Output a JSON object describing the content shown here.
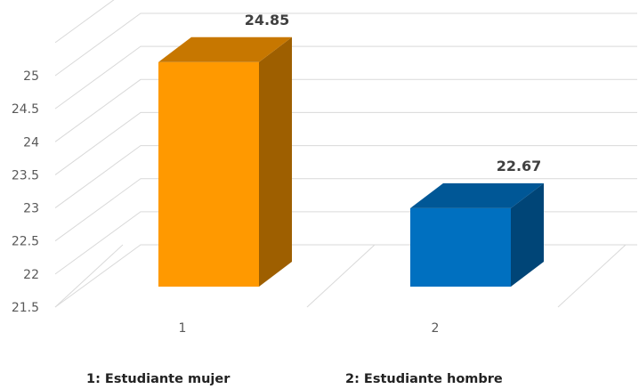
{
  "chart_data": {
    "type": "bar",
    "categories": [
      "1",
      "2"
    ],
    "values": [
      24.85,
      22.67
    ],
    "data_labels": [
      "24.85",
      "22.67"
    ],
    "colors": [
      "#FF9900",
      "#0070C0"
    ],
    "ylim": [
      21.5,
      25
    ],
    "yticks": [
      "21.5",
      "22",
      "22.5",
      "23",
      "23.5",
      "24",
      "24.5",
      "25"
    ],
    "grid": true,
    "view": "3d-clustered-column",
    "title": "",
    "xlabel": "",
    "ylabel": "",
    "legend_position": "bottom",
    "legend_items": [
      "1: Estudiante mujer",
      "2: Estudiante hombre"
    ]
  }
}
